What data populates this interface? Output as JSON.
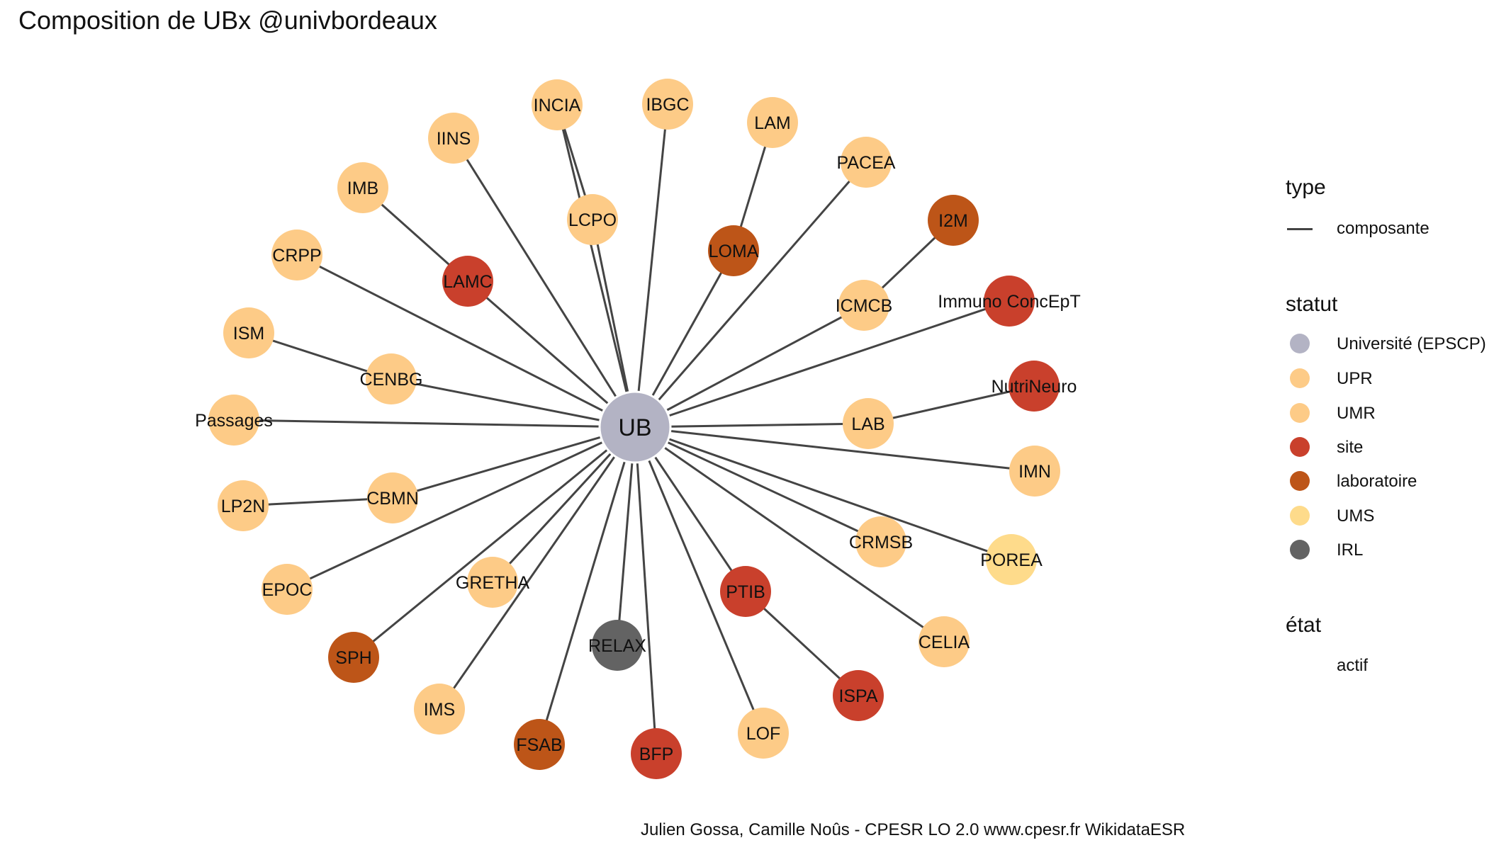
{
  "title": "Composition de UBx @univbordeaux",
  "caption": "Julien Gossa, Camille Noûs - CPESR LO 2.0 www.cpesr.fr WikidataESR",
  "legend": {
    "type_title": "type",
    "type_items": [
      {
        "label": "composante"
      }
    ],
    "statut_title": "statut",
    "statut_items": [
      {
        "label": "Université (EPSCP)",
        "color": "#b3b3c4"
      },
      {
        "label": "UPR",
        "color": "#fdcb87"
      },
      {
        "label": "UMR",
        "color": "#fdcb87"
      },
      {
        "label": "site",
        "color": "#c9402c"
      },
      {
        "label": "laboratoire",
        "color": "#bd5518"
      },
      {
        "label": "UMS",
        "color": "#fedb8b"
      },
      {
        "label": "IRL",
        "color": "#636363"
      }
    ],
    "etat_title": "état",
    "etat_items": [
      {
        "label": "actif"
      }
    ]
  },
  "colors": {
    "edge": "#444444",
    "center": "#b3b3c4",
    "UPR": "#fdcb87",
    "UMR": "#fdcb87",
    "site": "#c9402c",
    "laboratoire": "#bd5518",
    "UMS": "#fedb8b",
    "IRL": "#636363"
  },
  "graph": {
    "center": {
      "label": "UB",
      "statut": "Université (EPSCP)"
    },
    "nodes": [
      {
        "label": "INCIA",
        "statut": "UMR"
      },
      {
        "label": "IBGC",
        "statut": "UMR"
      },
      {
        "label": "LAM",
        "statut": "UMR"
      },
      {
        "label": "IINS",
        "statut": "UMR"
      },
      {
        "label": "PACEA",
        "statut": "UMR"
      },
      {
        "label": "IMB",
        "statut": "UMR"
      },
      {
        "label": "LCPO",
        "statut": "UMR"
      },
      {
        "label": "I2M",
        "statut": "laboratoire"
      },
      {
        "label": "LOMA",
        "statut": "laboratoire"
      },
      {
        "label": "CRPP",
        "statut": "UMR"
      },
      {
        "label": "LAMC",
        "statut": "site"
      },
      {
        "label": "ICMCB",
        "statut": "UMR"
      },
      {
        "label": "Immuno ConcEpT",
        "statut": "site"
      },
      {
        "label": "ISM",
        "statut": "UMR"
      },
      {
        "label": "CENBG",
        "statut": "UMR"
      },
      {
        "label": "NutriNeuro",
        "statut": "site"
      },
      {
        "label": "Passages",
        "statut": "UMR"
      },
      {
        "label": "LAB",
        "statut": "UMR"
      },
      {
        "label": "IMN",
        "statut": "UMR"
      },
      {
        "label": "LP2N",
        "statut": "UMR"
      },
      {
        "label": "CBMN",
        "statut": "UMR"
      },
      {
        "label": "CRMSB",
        "statut": "UMR"
      },
      {
        "label": "POREA",
        "statut": "UMS"
      },
      {
        "label": "EPOC",
        "statut": "UMR"
      },
      {
        "label": "GRETHA",
        "statut": "UMR"
      },
      {
        "label": "PTIB",
        "statut": "site"
      },
      {
        "label": "CELIA",
        "statut": "UMR"
      },
      {
        "label": "RELAX",
        "statut": "IRL"
      },
      {
        "label": "SPH",
        "statut": "laboratoire"
      },
      {
        "label": "ISPA",
        "statut": "site"
      },
      {
        "label": "IMS",
        "statut": "UMR"
      },
      {
        "label": "LOF",
        "statut": "UMR"
      },
      {
        "label": "FSAB",
        "statut": "laboratoire"
      },
      {
        "label": "BFP",
        "statut": "site"
      }
    ]
  }
}
